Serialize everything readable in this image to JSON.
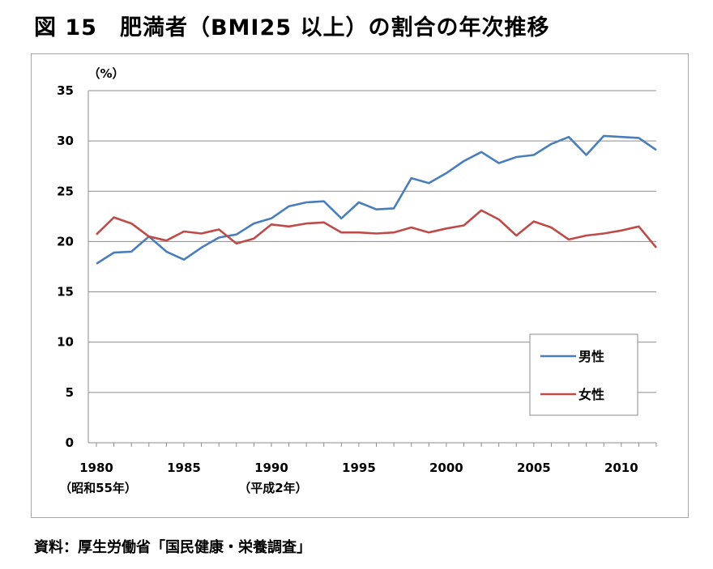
{
  "title": "図 15　肥満者（BMI25 以上）の割合の年次推移",
  "source": "資料：厚生労働省「国民健康・栄養調査」",
  "chart_data": {
    "type": "line",
    "ylabel": "（%）",
    "xlabel": "",
    "ylim": [
      0,
      35
    ],
    "yticks": [
      0,
      5,
      10,
      15,
      20,
      25,
      30,
      35
    ],
    "xlim": [
      1980,
      2012
    ],
    "xticks": [
      1980,
      1985,
      1990,
      1995,
      2000,
      2005,
      2010
    ],
    "x_sublabels": [
      {
        "x": 1980,
        "text": "（昭和55年）"
      },
      {
        "x": 1990,
        "text": "（平成2年）"
      }
    ],
    "grid": true,
    "legend_position": "bottom-right",
    "x": [
      1980,
      1981,
      1982,
      1983,
      1984,
      1985,
      1986,
      1987,
      1988,
      1989,
      1990,
      1991,
      1992,
      1993,
      1994,
      1995,
      1996,
      1997,
      1998,
      1999,
      2000,
      2001,
      2002,
      2003,
      2004,
      2005,
      2006,
      2007,
      2008,
      2009,
      2010,
      2011,
      2012
    ],
    "series": [
      {
        "name": "男性",
        "color": "#4a7ebb",
        "values": [
          17.8,
          18.9,
          19.0,
          20.5,
          19.0,
          18.2,
          19.4,
          20.4,
          20.7,
          21.8,
          22.3,
          23.5,
          23.9,
          24.0,
          22.3,
          23.9,
          23.2,
          23.3,
          26.3,
          25.8,
          26.8,
          28.0,
          28.9,
          27.8,
          28.4,
          28.6,
          29.7,
          30.4,
          28.6,
          30.5,
          30.4,
          30.3,
          29.1
        ]
      },
      {
        "name": "女性",
        "color": "#be4b48",
        "values": [
          20.7,
          22.4,
          21.8,
          20.5,
          20.1,
          21.0,
          20.8,
          21.2,
          19.8,
          20.3,
          21.7,
          21.5,
          21.8,
          21.9,
          20.9,
          20.9,
          20.8,
          20.9,
          21.4,
          20.9,
          21.3,
          21.6,
          23.1,
          22.2,
          20.6,
          22.0,
          21.4,
          20.2,
          20.6,
          20.8,
          21.1,
          21.5,
          19.4
        ]
      }
    ]
  }
}
